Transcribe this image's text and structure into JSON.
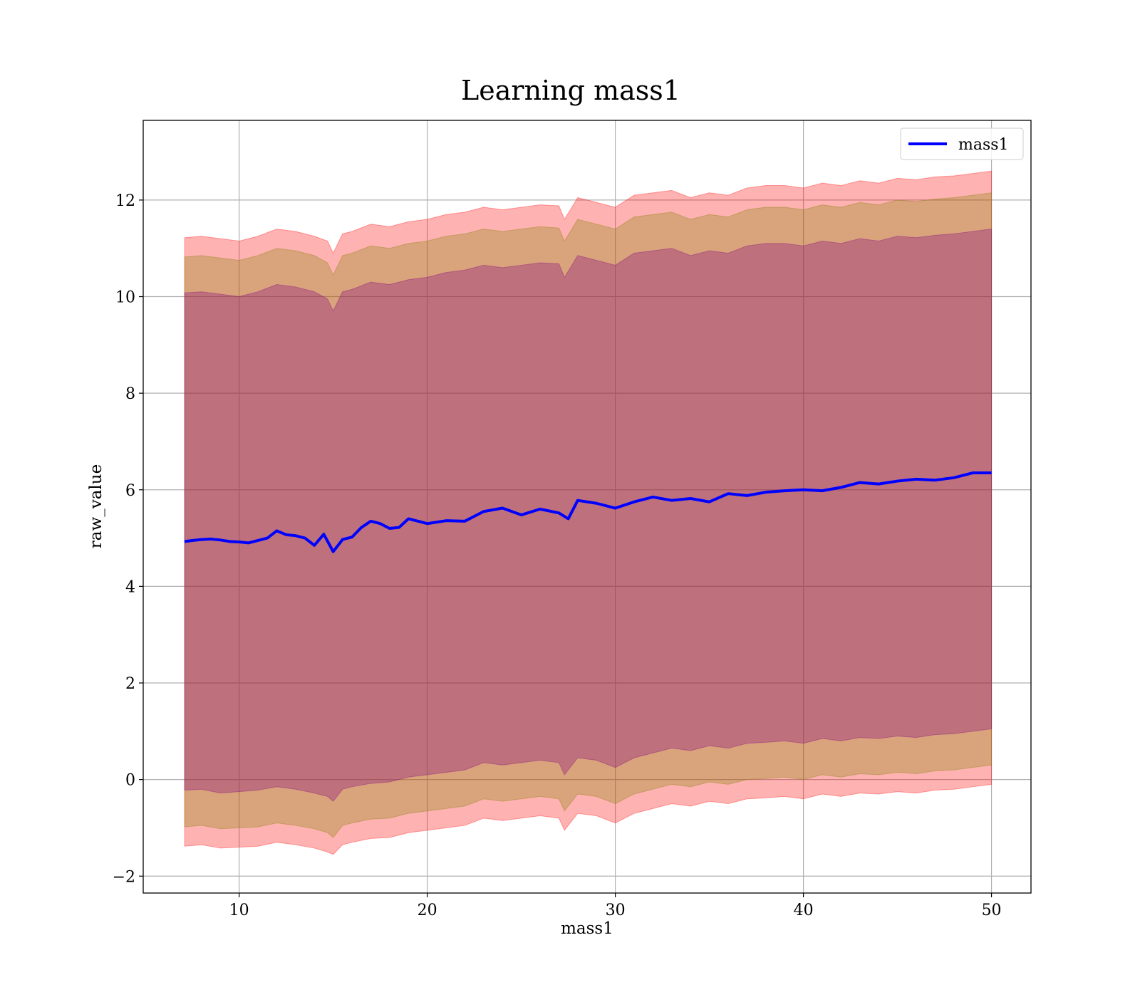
{
  "chart_data": {
    "type": "line",
    "title": "Learning mass1",
    "xlabel": "mass1",
    "ylabel": "raw_value",
    "xlim": [
      4.9,
      52.1
    ],
    "ylim": [
      -2.35,
      13.65
    ],
    "xticks": [
      10,
      20,
      30,
      40,
      50
    ],
    "xtick_labels": [
      "10",
      "20",
      "30",
      "40",
      "50"
    ],
    "yticks": [
      -2,
      0,
      2,
      4,
      6,
      8,
      10,
      12
    ],
    "ytick_labels": [
      "−2",
      "0",
      "2",
      "4",
      "6",
      "8",
      "10",
      "12"
    ],
    "grid": true,
    "legend": {
      "position": "top-right",
      "entries": [
        "mass1"
      ]
    },
    "series": [
      {
        "name": "mass1",
        "color": "#0000ff",
        "x": [
          7.1,
          7.5,
          8,
          8.5,
          9,
          9.5,
          10,
          10.5,
          11,
          11.5,
          12,
          12.5,
          13,
          13.5,
          14,
          14.5,
          15,
          15.5,
          16,
          16.5,
          17,
          17.5,
          18,
          18.5,
          19,
          19.5,
          20,
          21,
          22,
          23,
          24,
          25,
          26,
          27,
          27.5,
          28,
          29,
          30,
          31,
          32,
          33,
          34,
          35,
          36,
          37,
          38,
          39,
          40,
          41,
          42,
          43,
          44,
          45,
          46,
          47,
          48,
          49,
          50
        ],
        "y": [
          4.93,
          4.95,
          4.97,
          4.98,
          4.96,
          4.93,
          4.92,
          4.9,
          4.95,
          5.0,
          5.15,
          5.07,
          5.05,
          5.0,
          4.85,
          5.08,
          4.72,
          4.97,
          5.02,
          5.22,
          5.35,
          5.3,
          5.2,
          5.22,
          5.4,
          5.35,
          5.3,
          5.36,
          5.35,
          5.55,
          5.62,
          5.48,
          5.6,
          5.52,
          5.4,
          5.78,
          5.72,
          5.62,
          5.75,
          5.85,
          5.78,
          5.82,
          5.75,
          5.92,
          5.88,
          5.95,
          5.98,
          6.0,
          5.98,
          6.05,
          6.15,
          6.12,
          6.18,
          6.22,
          6.2,
          6.25,
          6.35,
          6.35
        ]
      }
    ],
    "bands": [
      {
        "color": "#ff0000",
        "alpha": 0.3,
        "x": [
          7.1,
          8,
          9,
          10,
          11,
          12,
          13,
          14,
          14.7,
          15,
          15.5,
          16,
          17,
          18,
          19,
          20,
          21,
          22,
          23,
          24,
          25,
          26,
          27,
          27.3,
          28,
          29,
          30,
          31,
          32,
          33,
          34,
          35,
          36,
          37,
          38,
          39,
          40,
          41,
          42,
          43,
          44,
          45,
          46,
          47,
          48,
          49,
          50
        ],
        "upper": [
          11.22,
          11.25,
          11.2,
          11.15,
          11.25,
          11.4,
          11.35,
          11.25,
          11.15,
          10.9,
          11.3,
          11.35,
          11.5,
          11.45,
          11.55,
          11.6,
          11.7,
          11.75,
          11.85,
          11.8,
          11.85,
          11.9,
          11.88,
          11.6,
          12.05,
          11.95,
          11.85,
          12.1,
          12.15,
          12.2,
          12.05,
          12.15,
          12.1,
          12.25,
          12.3,
          12.3,
          12.25,
          12.35,
          12.3,
          12.4,
          12.35,
          12.45,
          12.42,
          12.48,
          12.5,
          12.55,
          12.6
        ],
        "lower": [
          -1.38,
          -1.35,
          -1.42,
          -1.4,
          -1.38,
          -1.3,
          -1.35,
          -1.42,
          -1.5,
          -1.55,
          -1.35,
          -1.3,
          -1.22,
          -1.2,
          -1.1,
          -1.05,
          -1.0,
          -0.95,
          -0.8,
          -0.85,
          -0.8,
          -0.75,
          -0.8,
          -1.05,
          -0.7,
          -0.75,
          -0.9,
          -0.7,
          -0.6,
          -0.5,
          -0.55,
          -0.45,
          -0.5,
          -0.4,
          -0.38,
          -0.35,
          -0.4,
          -0.3,
          -0.35,
          -0.28,
          -0.3,
          -0.25,
          -0.28,
          -0.22,
          -0.2,
          -0.15,
          -0.1
        ]
      },
      {
        "color": "#808000",
        "alpha": 0.3,
        "x": [
          7.1,
          8,
          9,
          10,
          11,
          12,
          13,
          14,
          14.7,
          15,
          15.5,
          16,
          17,
          18,
          19,
          20,
          21,
          22,
          23,
          24,
          25,
          26,
          27,
          27.3,
          28,
          29,
          30,
          31,
          32,
          33,
          34,
          35,
          36,
          37,
          38,
          39,
          40,
          41,
          42,
          43,
          44,
          45,
          46,
          47,
          48,
          49,
          50
        ],
        "upper": [
          10.82,
          10.85,
          10.8,
          10.75,
          10.85,
          11.0,
          10.95,
          10.85,
          10.7,
          10.45,
          10.85,
          10.9,
          11.05,
          11.0,
          11.1,
          11.15,
          11.25,
          11.3,
          11.4,
          11.35,
          11.4,
          11.45,
          11.42,
          11.15,
          11.6,
          11.5,
          11.4,
          11.65,
          11.7,
          11.75,
          11.6,
          11.7,
          11.65,
          11.8,
          11.85,
          11.85,
          11.8,
          11.9,
          11.85,
          11.95,
          11.9,
          12.0,
          11.97,
          12.02,
          12.05,
          12.1,
          12.15
        ],
        "lower": [
          -0.98,
          -0.95,
          -1.02,
          -1.0,
          -0.98,
          -0.9,
          -0.95,
          -1.02,
          -1.1,
          -1.2,
          -0.95,
          -0.9,
          -0.82,
          -0.8,
          -0.7,
          -0.65,
          -0.6,
          -0.55,
          -0.4,
          -0.45,
          -0.4,
          -0.35,
          -0.4,
          -0.65,
          -0.3,
          -0.35,
          -0.5,
          -0.3,
          -0.2,
          -0.1,
          -0.15,
          -0.05,
          -0.1,
          0.0,
          0.02,
          0.05,
          0.0,
          0.1,
          0.05,
          0.12,
          0.1,
          0.15,
          0.12,
          0.18,
          0.2,
          0.25,
          0.3
        ]
      },
      {
        "color": "#800080",
        "alpha": 0.3,
        "x": [
          7.1,
          8,
          9,
          10,
          11,
          12,
          13,
          14,
          14.7,
          15,
          15.5,
          16,
          17,
          18,
          19,
          20,
          21,
          22,
          23,
          24,
          25,
          26,
          27,
          27.3,
          28,
          29,
          30,
          31,
          32,
          33,
          34,
          35,
          36,
          37,
          38,
          39,
          40,
          41,
          42,
          43,
          44,
          45,
          46,
          47,
          48,
          49,
          50
        ],
        "upper": [
          10.08,
          10.1,
          10.05,
          10.0,
          10.1,
          10.25,
          10.2,
          10.1,
          9.95,
          9.7,
          10.1,
          10.15,
          10.3,
          10.25,
          10.35,
          10.4,
          10.5,
          10.55,
          10.65,
          10.6,
          10.65,
          10.7,
          10.68,
          10.4,
          10.85,
          10.75,
          10.65,
          10.9,
          10.95,
          11.0,
          10.85,
          10.95,
          10.9,
          11.05,
          11.1,
          11.1,
          11.05,
          11.15,
          11.1,
          11.2,
          11.15,
          11.25,
          11.22,
          11.27,
          11.3,
          11.35,
          11.4
        ],
        "lower": [
          -0.22,
          -0.2,
          -0.28,
          -0.25,
          -0.22,
          -0.15,
          -0.2,
          -0.28,
          -0.35,
          -0.45,
          -0.2,
          -0.15,
          -0.08,
          -0.05,
          0.05,
          0.1,
          0.15,
          0.2,
          0.35,
          0.3,
          0.35,
          0.4,
          0.35,
          0.1,
          0.45,
          0.4,
          0.25,
          0.45,
          0.55,
          0.65,
          0.6,
          0.7,
          0.65,
          0.75,
          0.77,
          0.8,
          0.75,
          0.85,
          0.8,
          0.87,
          0.85,
          0.9,
          0.87,
          0.93,
          0.95,
          1.0,
          1.05
        ]
      }
    ]
  }
}
